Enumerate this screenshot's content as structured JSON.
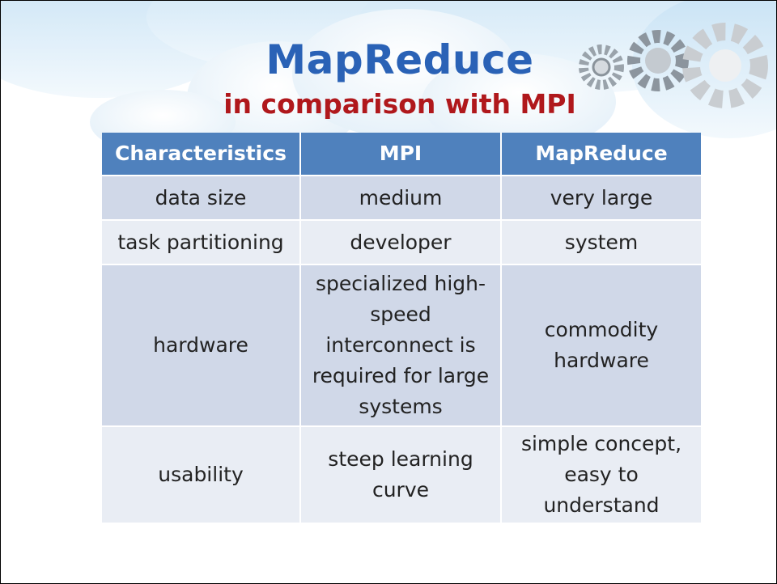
{
  "header": {
    "title": "MapReduce",
    "subtitle": "in comparison with MPI"
  },
  "table": {
    "columns": [
      "Characteristics",
      "MPI",
      "MapReduce"
    ],
    "rows": [
      [
        "data size",
        "medium",
        "very large"
      ],
      [
        "task partitioning",
        "developer",
        "system"
      ],
      [
        "hardware",
        "specialized high-speed interconnect is required for large systems",
        "commodity hardware"
      ],
      [
        "usability",
        "steep learning curve",
        "simple concept, easy to understand"
      ]
    ]
  }
}
